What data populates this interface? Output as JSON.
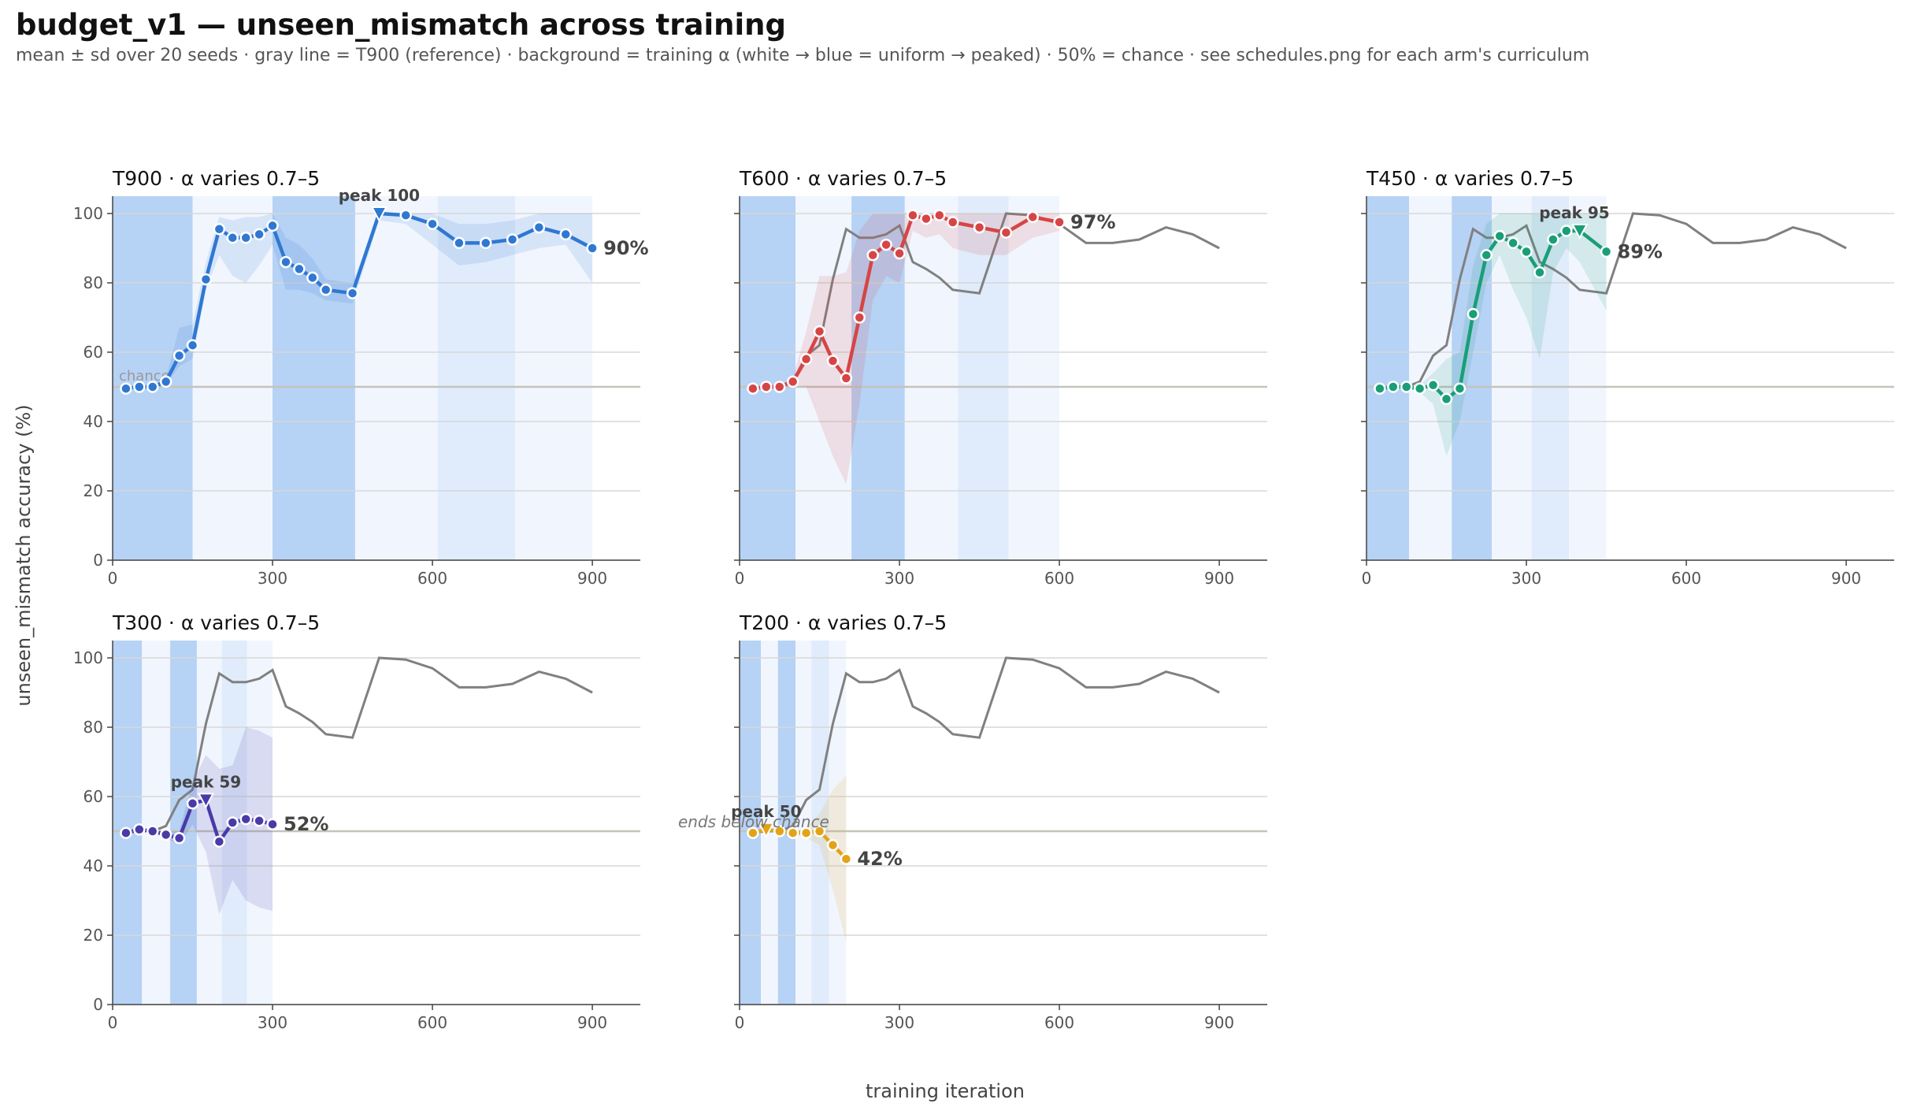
{
  "title": "budget_v1 — unseen_mismatch across training",
  "subtitle": "mean ± sd over 20 seeds · gray line = T900 (reference) · background = training α (white → blue = uniform → peaked) · 50% = chance · see schedules.png for each arm's curriculum",
  "chart_data": {
    "type": "line",
    "ylabel": "unseen_mismatch accuracy (%)",
    "xlabel": "training iteration",
    "xlim": [
      0,
      990
    ],
    "ylim": [
      0,
      105
    ],
    "xticks": [
      0,
      300,
      600,
      900
    ],
    "yticks": [
      0,
      20,
      40,
      60,
      80,
      100
    ],
    "grid": "horizontal",
    "chance_level": 50,
    "reference": {
      "name": "T900",
      "color": "#808080",
      "x": [
        25,
        50,
        75,
        100,
        125,
        150,
        175,
        200,
        225,
        250,
        275,
        300,
        325,
        350,
        375,
        400,
        450,
        500,
        550,
        600,
        650,
        700,
        750,
        800,
        850,
        900
      ],
      "y": [
        49.5,
        50,
        50,
        51.5,
        59,
        62,
        81,
        95.5,
        93,
        93,
        94,
        96.5,
        86,
        84,
        81.5,
        78,
        77,
        100,
        99.5,
        97,
        91.5,
        91.5,
        92.5,
        96,
        94,
        90
      ]
    },
    "panels": [
      {
        "name": "T900",
        "title": "T900   ·   α varies 0.7–5",
        "color": "#2f78d2",
        "x": [
          25,
          50,
          75,
          100,
          125,
          150,
          175,
          200,
          225,
          250,
          275,
          300,
          325,
          350,
          375,
          400,
          450,
          500,
          550,
          600,
          650,
          700,
          750,
          800,
          850,
          900
        ],
        "mean": [
          49.5,
          50,
          50,
          51.5,
          59,
          62,
          81,
          95.5,
          93,
          93,
          94,
          96.5,
          86,
          84,
          81.5,
          78,
          77,
          100,
          99.5,
          97,
          91.5,
          91.5,
          92.5,
          96,
          94,
          90
        ],
        "sd_low": [
          49,
          49.5,
          49.5,
          50.5,
          56,
          58,
          78,
          88,
          82,
          80,
          85,
          91,
          78,
          78,
          77,
          75,
          74,
          98,
          97,
          91,
          85,
          86,
          88,
          90,
          91,
          80
        ],
        "sd_high": [
          50,
          50.5,
          50.5,
          52.5,
          67,
          68,
          86,
          99,
          98,
          99,
          99,
          100,
          93,
          91,
          87,
          81,
          80,
          100,
          100,
          100,
          97,
          97,
          98,
          100,
          100,
          100
        ],
        "peak": {
          "x": 500,
          "y": 100,
          "label": "peak 100"
        },
        "end_label": "90%",
        "chance_label": "chance",
        "note": "",
        "alpha_bands": [
          [
            0,
            150,
            "#b6d2f5"
          ],
          [
            150,
            300,
            "#f1f6fe"
          ],
          [
            300,
            455,
            "#b6d2f5"
          ],
          [
            455,
            610,
            "#f1f6fe"
          ],
          [
            610,
            755,
            "#e0ecfb"
          ],
          [
            755,
            900,
            "#f1f6fe"
          ]
        ]
      },
      {
        "name": "T600",
        "title": "T600   ·   α varies 0.7–5",
        "color": "#d64545",
        "x": [
          25,
          50,
          75,
          100,
          125,
          150,
          175,
          200,
          225,
          250,
          275,
          300,
          325,
          350,
          375,
          400,
          450,
          500,
          550,
          600
        ],
        "mean": [
          49.5,
          50,
          50,
          51.5,
          58,
          66,
          57.5,
          52.5,
          70,
          88,
          91,
          88.5,
          99.5,
          98.5,
          99.5,
          97.5,
          96,
          94.5,
          99,
          97.5
        ],
        "sd_low": [
          49,
          49.5,
          49.5,
          50.5,
          50,
          40,
          30,
          22,
          45,
          75,
          82,
          80,
          95,
          93,
          94,
          90,
          88,
          88,
          93,
          95
        ],
        "sd_high": [
          50,
          50.5,
          50.5,
          52.5,
          66,
          82,
          82,
          83,
          95,
          100,
          100,
          100,
          100,
          100,
          100,
          100,
          100,
          100,
          100,
          100
        ],
        "peak": null,
        "end_label": "97%",
        "chance_label": "",
        "note": "",
        "alpha_bands": [
          [
            0,
            105,
            "#b6d2f5"
          ],
          [
            105,
            210,
            "#f1f6fe"
          ],
          [
            210,
            310,
            "#b6d2f5"
          ],
          [
            310,
            410,
            "#f1f6fe"
          ],
          [
            410,
            505,
            "#e0ecfb"
          ],
          [
            505,
            600,
            "#f1f6fe"
          ]
        ]
      },
      {
        "name": "T450",
        "title": "T450   ·   α varies 0.7–5",
        "color": "#1a9e77",
        "x": [
          25,
          50,
          75,
          100,
          125,
          150,
          175,
          200,
          225,
          250,
          275,
          300,
          325,
          350,
          375,
          400,
          450
        ],
        "mean": [
          49.5,
          50,
          50,
          49.5,
          50.5,
          46.5,
          49.5,
          71,
          88,
          93.5,
          91.5,
          89,
          83,
          92.5,
          95,
          95,
          89
        ],
        "sd_low": [
          49,
          49.5,
          49.5,
          48.5,
          45,
          30,
          40,
          60,
          80,
          88,
          78,
          70,
          58,
          83,
          90,
          86,
          72
        ],
        "sd_high": [
          50,
          50.5,
          50.5,
          50.5,
          54,
          58,
          60,
          85,
          97,
          100,
          100,
          100,
          100,
          100,
          100,
          100,
          100
        ],
        "peak": {
          "x": 390,
          "y": 95,
          "label": "peak 95"
        },
        "end_label": "89%",
        "chance_label": "",
        "note": "",
        "alpha_bands": [
          [
            0,
            80,
            "#b6d2f5"
          ],
          [
            80,
            160,
            "#f1f6fe"
          ],
          [
            160,
            235,
            "#b6d2f5"
          ],
          [
            235,
            310,
            "#f1f6fe"
          ],
          [
            310,
            380,
            "#e0ecfb"
          ],
          [
            380,
            450,
            "#f1f6fe"
          ]
        ]
      },
      {
        "name": "T300",
        "title": "T300   ·   α varies 0.7–5",
        "color": "#4a3aa8",
        "x": [
          25,
          50,
          75,
          100,
          125,
          150,
          175,
          200,
          225,
          250,
          275,
          300
        ],
        "mean": [
          49.5,
          50.5,
          50,
          49,
          48,
          58,
          59,
          47,
          52.5,
          53.5,
          53,
          52
        ],
        "sd_low": [
          49,
          50,
          49.5,
          48,
          46,
          52,
          44,
          26,
          36,
          30,
          28,
          27
        ],
        "sd_high": [
          50,
          51,
          50.5,
          50,
          50,
          64,
          72,
          68,
          69,
          80,
          79,
          77
        ],
        "peak": {
          "x": 175,
          "y": 59,
          "label": "peak 59"
        },
        "end_label": "52%",
        "chance_label": "",
        "note": "",
        "alpha_bands": [
          [
            0,
            55,
            "#b6d2f5"
          ],
          [
            55,
            108,
            "#f1f6fe"
          ],
          [
            108,
            158,
            "#b6d2f5"
          ],
          [
            158,
            205,
            "#f1f6fe"
          ],
          [
            205,
            252,
            "#e0ecfb"
          ],
          [
            252,
            300,
            "#f1f6fe"
          ]
        ]
      },
      {
        "name": "T200",
        "title": "T200   ·   α varies 0.7–5",
        "color": "#e3a318",
        "x": [
          25,
          50,
          75,
          100,
          125,
          150,
          175,
          200
        ],
        "mean": [
          49.5,
          50.5,
          50,
          49.5,
          49.5,
          50,
          46,
          42
        ],
        "sd_low": [
          49,
          50,
          49.5,
          49,
          48,
          46,
          33,
          18
        ],
        "sd_high": [
          50,
          51,
          50.5,
          50,
          51,
          55,
          62,
          66
        ],
        "peak": {
          "x": 50,
          "y": 50.5,
          "label": "peak 50"
        },
        "end_label": "42%",
        "chance_label": "",
        "note": "ends below chance",
        "alpha_bands": [
          [
            0,
            40,
            "#b6d2f5"
          ],
          [
            40,
            72,
            "#f1f6fe"
          ],
          [
            72,
            105,
            "#b6d2f5"
          ],
          [
            105,
            135,
            "#f1f6fe"
          ],
          [
            135,
            168,
            "#e0ecfb"
          ],
          [
            168,
            200,
            "#f1f6fe"
          ]
        ]
      }
    ]
  }
}
